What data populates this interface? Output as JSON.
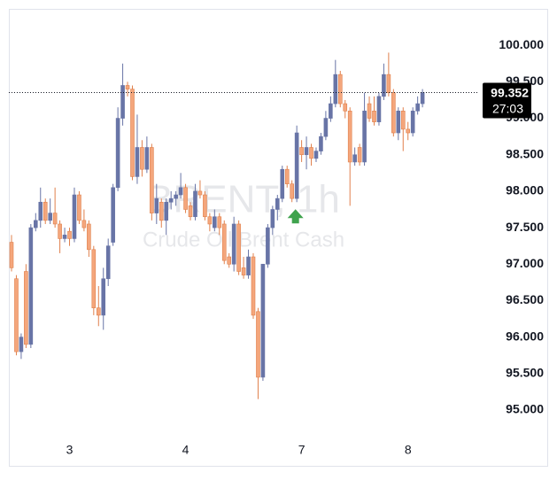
{
  "chart_data": {
    "type": "candlestick",
    "watermark_title": "BRENT, 1h",
    "watermark_subtitle": "Crude Oil Brent Cash",
    "up_color": "#6874a6",
    "down_color": "#f4a67c",
    "down_border": "#e0804c",
    "categories": [
      null,
      null,
      null,
      null,
      null,
      null,
      null,
      null,
      null,
      null,
      null,
      null,
      "3",
      null,
      null,
      null,
      null,
      null,
      null,
      null,
      null,
      null,
      null,
      null,
      null,
      null,
      null,
      null,
      null,
      null,
      null,
      null,
      null,
      null,
      null,
      null,
      "4",
      null,
      null,
      null,
      null,
      null,
      null,
      null,
      null,
      null,
      null,
      null,
      null,
      null,
      null,
      null,
      null,
      null,
      null,
      null,
      null,
      null,
      null,
      null,
      "7",
      null,
      null,
      null,
      null,
      null,
      null,
      null,
      null,
      null,
      null,
      null,
      null,
      null,
      null,
      null,
      null,
      null,
      null,
      null,
      null,
      null,
      "8",
      null,
      null,
      null
    ],
    "candles": [
      [
        97.3,
        97.4,
        96.9,
        96.95
      ],
      [
        96.8,
        96.85,
        95.75,
        95.8
      ],
      [
        95.8,
        96.05,
        95.7,
        96.0
      ],
      [
        96.9,
        97.0,
        95.85,
        95.9
      ],
      [
        95.9,
        97.55,
        95.85,
        97.5
      ],
      [
        97.5,
        97.7,
        97.45,
        97.6
      ],
      [
        97.6,
        98.05,
        97.5,
        97.85
      ],
      [
        97.85,
        97.9,
        97.55,
        97.6
      ],
      [
        97.6,
        97.9,
        97.55,
        97.7
      ],
      [
        97.7,
        98.05,
        97.5,
        97.55
      ],
      [
        97.55,
        97.6,
        97.15,
        97.35
      ],
      [
        97.35,
        97.5,
        97.3,
        97.4
      ],
      [
        97.45,
        97.5,
        97.25,
        97.35
      ],
      [
        97.35,
        98.05,
        97.3,
        97.95
      ],
      [
        97.95,
        98.0,
        97.55,
        97.6
      ],
      [
        97.6,
        97.75,
        97.45,
        97.5
      ],
      [
        97.55,
        97.6,
        97.1,
        97.2
      ],
      [
        97.2,
        97.25,
        96.3,
        96.4
      ],
      [
        96.4,
        96.7,
        96.15,
        96.3
      ],
      [
        96.3,
        96.95,
        96.1,
        96.8
      ],
      [
        96.8,
        97.35,
        96.7,
        97.25
      ],
      [
        97.3,
        98.1,
        97.25,
        98.05
      ],
      [
        98.05,
        99.15,
        98.0,
        99.0
      ],
      [
        99.0,
        99.75,
        98.9,
        99.45
      ],
      [
        99.45,
        99.5,
        99.3,
        99.4
      ],
      [
        99.4,
        99.45,
        98.15,
        98.2
      ],
      [
        98.2,
        99.05,
        98.1,
        98.6
      ],
      [
        98.6,
        98.7,
        98.2,
        98.3
      ],
      [
        98.3,
        98.75,
        98.25,
        98.6
      ],
      [
        98.6,
        98.65,
        97.6,
        97.7
      ],
      [
        97.7,
        98.1,
        97.55,
        97.9
      ],
      [
        97.85,
        97.9,
        97.5,
        97.6
      ],
      [
        97.6,
        97.9,
        97.4,
        97.85
      ],
      [
        97.85,
        98.0,
        97.75,
        97.9
      ],
      [
        97.9,
        98.0,
        97.8,
        97.95
      ],
      [
        97.95,
        98.25,
        97.9,
        98.05
      ],
      [
        98.05,
        98.1,
        97.7,
        97.75
      ],
      [
        97.8,
        97.85,
        97.6,
        97.65
      ],
      [
        97.65,
        98.1,
        97.6,
        98.0
      ],
      [
        98.0,
        98.15,
        97.9,
        97.95
      ],
      [
        97.95,
        98.0,
        97.6,
        97.65
      ],
      [
        97.65,
        97.7,
        97.45,
        97.55
      ],
      [
        97.5,
        97.75,
        97.45,
        97.65
      ],
      [
        97.65,
        97.7,
        97.4,
        97.5
      ],
      [
        97.55,
        97.6,
        97.0,
        97.05
      ],
      [
        97.1,
        97.15,
        96.95,
        97.0
      ],
      [
        97.0,
        97.65,
        96.9,
        97.55
      ],
      [
        97.55,
        97.6,
        96.85,
        96.9
      ],
      [
        96.95,
        97.1,
        96.8,
        96.85
      ],
      [
        96.85,
        97.2,
        96.8,
        97.1
      ],
      [
        97.1,
        97.15,
        96.25,
        96.3
      ],
      [
        96.35,
        96.4,
        95.15,
        95.45
      ],
      [
        95.45,
        97.0,
        95.4,
        97.0
      ],
      [
        97.0,
        97.55,
        96.95,
        97.5
      ],
      [
        97.5,
        97.8,
        97.4,
        97.75
      ],
      [
        97.75,
        97.95,
        97.6,
        97.9
      ],
      [
        97.9,
        98.35,
        97.85,
        98.3
      ],
      [
        98.3,
        98.35,
        98.05,
        98.1
      ],
      [
        98.1,
        98.15,
        97.85,
        97.9
      ],
      [
        97.9,
        98.9,
        97.85,
        98.8
      ],
      [
        98.6,
        98.7,
        98.4,
        98.5
      ],
      [
        98.5,
        98.75,
        98.3,
        98.6
      ],
      [
        98.6,
        98.65,
        98.35,
        98.45
      ],
      [
        98.45,
        98.6,
        98.4,
        98.55
      ],
      [
        98.55,
        98.8,
        98.5,
        98.75
      ],
      [
        98.75,
        99.1,
        98.7,
        99.0
      ],
      [
        99.0,
        99.3,
        98.95,
        99.2
      ],
      [
        99.2,
        99.8,
        99.15,
        99.6
      ],
      [
        99.6,
        99.65,
        99.15,
        99.2
      ],
      [
        99.2,
        99.25,
        99.0,
        99.1
      ],
      [
        99.1,
        99.15,
        97.8,
        98.4
      ],
      [
        98.4,
        98.6,
        98.35,
        98.5
      ],
      [
        98.6,
        98.65,
        98.35,
        98.4
      ],
      [
        98.4,
        99.35,
        98.35,
        99.1
      ],
      [
        99.2,
        99.3,
        98.95,
        99.0
      ],
      [
        99.1,
        99.3,
        98.9,
        98.95
      ],
      [
        98.95,
        99.35,
        98.9,
        99.3
      ],
      [
        99.3,
        99.75,
        99.25,
        99.6
      ],
      [
        99.6,
        99.9,
        99.3,
        99.35
      ],
      [
        99.35,
        99.4,
        98.75,
        98.8
      ],
      [
        98.8,
        99.15,
        98.7,
        99.1
      ],
      [
        99.1,
        99.15,
        98.55,
        98.85
      ],
      [
        98.85,
        98.95,
        98.7,
        98.8
      ],
      [
        98.8,
        99.15,
        98.75,
        99.1
      ],
      [
        99.1,
        99.3,
        99.05,
        99.2
      ],
      [
        99.2,
        99.4,
        99.15,
        99.352
      ]
    ],
    "ylim": [
      94.49,
      100.5
    ],
    "yticks": [
      {
        "value": 95,
        "label": "95.000"
      },
      {
        "value": 95.5,
        "label": "95.500"
      },
      {
        "value": 96,
        "label": "96.000"
      },
      {
        "value": 96.5,
        "label": "96.500"
      },
      {
        "value": 97,
        "label": "97.000"
      },
      {
        "value": 97.5,
        "label": "97.500"
      },
      {
        "value": 98,
        "label": "98.000"
      },
      {
        "value": 98.5,
        "label": "98.500"
      },
      {
        "value": 99,
        "label": "99.000"
      },
      {
        "value": 99.5,
        "label": "99.500"
      },
      {
        "value": 100,
        "label": "100.000"
      }
    ],
    "last_price": 99.352,
    "countdown": "27:03",
    "marker_index": 58
  }
}
